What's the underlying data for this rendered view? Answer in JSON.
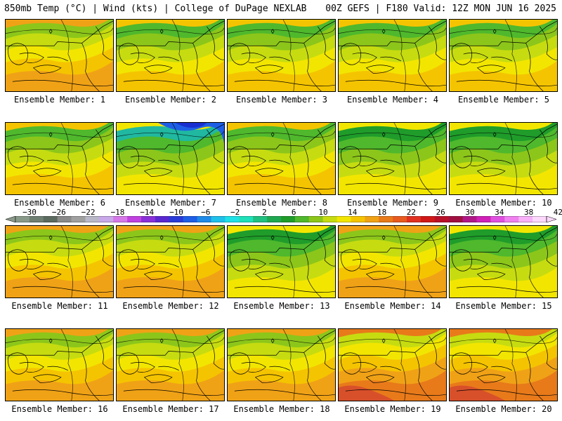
{
  "header": {
    "left": "850mb Temp (°C) | Wind (kts) | College of DuPage NEXLAB",
    "right": "00Z GEFS | F180 Valid: 12Z MON JUN 16 2025"
  },
  "colors": {
    "green_dark": "#1f9c2a",
    "green": "#4fb82c",
    "green_light": "#8cc61a",
    "yellow_green": "#c6dc10",
    "yellow": "#f2e600",
    "yellow_orange": "#f5c400",
    "orange": "#f0a216",
    "orange_dark": "#e87a1a",
    "red_orange": "#d8502a",
    "cyan": "#1fe0e6",
    "teal": "#20b8a0",
    "blue": "#1e5ee6",
    "blue_dark": "#1a2fd0"
  },
  "panels": [
    {
      "label": "Ensemble Member: 1",
      "style": "warm"
    },
    {
      "label": "Ensemble Member: 2",
      "style": "mid"
    },
    {
      "label": "Ensemble Member: 3",
      "style": "mid"
    },
    {
      "label": "Ensemble Member: 4",
      "style": "mid"
    },
    {
      "label": "Ensemble Member: 5",
      "style": "mid"
    },
    {
      "label": "Ensemble Member: 6",
      "style": "mid"
    },
    {
      "label": "Ensemble Member: 7",
      "style": "cold"
    },
    {
      "label": "Ensemble Member: 8",
      "style": "mid"
    },
    {
      "label": "Ensemble Member: 9",
      "style": "green"
    },
    {
      "label": "Ensemble Member: 10",
      "style": "green"
    },
    {
      "label": "Ensemble Member: 11",
      "style": "warm"
    },
    {
      "label": "Ensemble Member: 12",
      "style": "warm"
    },
    {
      "label": "Ensemble Member: 13",
      "style": "green"
    },
    {
      "label": "Ensemble Member: 14",
      "style": "warm"
    },
    {
      "label": "Ensemble Member: 15",
      "style": "green"
    },
    {
      "label": "Ensemble Member: 16",
      "style": "warm"
    },
    {
      "label": "Ensemble Member: 17",
      "style": "warm"
    },
    {
      "label": "Ensemble Member: 18",
      "style": "warm"
    },
    {
      "label": "Ensemble Member: 19",
      "style": "hot"
    },
    {
      "label": "Ensemble Member: 20",
      "style": "hot"
    }
  ],
  "colorbar": {
    "labels": [
      "−30",
      "−26",
      "−22",
      "−18",
      "−14",
      "−10",
      "−6",
      "−2",
      "2",
      "6",
      "10",
      "14",
      "18",
      "22",
      "26",
      "30",
      "34",
      "38",
      "42"
    ],
    "colors": [
      "#8a9a8a",
      "#6f7f72",
      "#5c6b60",
      "#8a8a8a",
      "#a0a0a0",
      "#b8b8c8",
      "#c8a8e8",
      "#d678e8",
      "#c040e0",
      "#8a30d8",
      "#5a28d0",
      "#2a3ad8",
      "#1f5ee6",
      "#1f8ae8",
      "#1fc0ea",
      "#1fe0e6",
      "#1fe0b8",
      "#20c080",
      "#1fa850",
      "#1f9c2a",
      "#4fb82c",
      "#8cc61a",
      "#c6dc10",
      "#f2e600",
      "#f5c400",
      "#f0a216",
      "#e87a1a",
      "#e85a20",
      "#e03020",
      "#d01818",
      "#b81028",
      "#a01040",
      "#b01888",
      "#d020b8",
      "#e050e0",
      "#f080f0",
      "#f8b0f8",
      "#fcd8fc"
    ]
  }
}
